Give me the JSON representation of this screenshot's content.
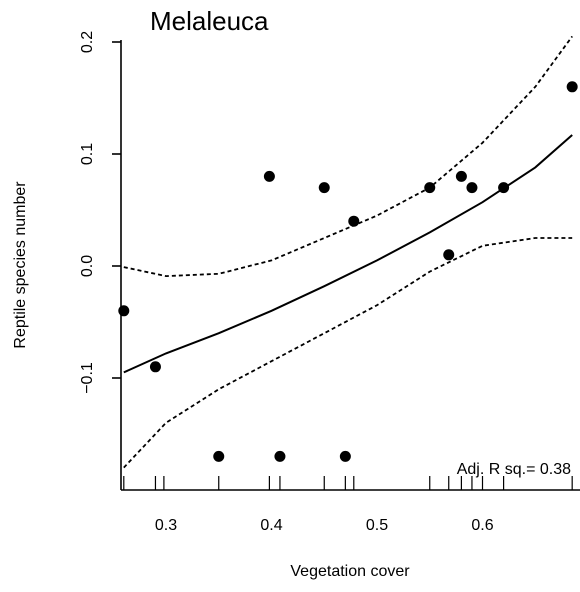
{
  "chart_data": {
    "type": "scatter",
    "title": "Melaleuca",
    "xlabel": "Vegetation cover",
    "ylabel": "Reptile species number",
    "xlim": [
      0.255,
      0.69
    ],
    "ylim": [
      -0.205,
      0.225
    ],
    "x_ticks": [
      0.3,
      0.4,
      0.5,
      0.6
    ],
    "x_tick_labels": [
      "0.3",
      "0.4",
      "0.5",
      "0.6"
    ],
    "y_ticks": [
      -0.1,
      0.0,
      0.1,
      0.2
    ],
    "y_tick_labels": [
      "−0.1",
      "0.0",
      "0.1",
      "0.2"
    ],
    "grid": false,
    "annotation": "Adj. R sq.= 0.38",
    "points": [
      {
        "x": 0.26,
        "y": -0.04
      },
      {
        "x": 0.29,
        "y": -0.09
      },
      {
        "x": 0.35,
        "y": -0.17
      },
      {
        "x": 0.398,
        "y": 0.08
      },
      {
        "x": 0.408,
        "y": -0.17
      },
      {
        "x": 0.45,
        "y": 0.07
      },
      {
        "x": 0.47,
        "y": -0.17
      },
      {
        "x": 0.478,
        "y": 0.04
      },
      {
        "x": 0.55,
        "y": 0.07
      },
      {
        "x": 0.568,
        "y": 0.01
      },
      {
        "x": 0.58,
        "y": 0.08
      },
      {
        "x": 0.59,
        "y": 0.07
      },
      {
        "x": 0.62,
        "y": 0.07
      },
      {
        "x": 0.685,
        "y": 0.16
      }
    ],
    "rug_x": [
      0.26,
      0.29,
      0.298,
      0.35,
      0.398,
      0.408,
      0.45,
      0.47,
      0.478,
      0.55,
      0.568,
      0.58,
      0.59,
      0.6,
      0.62,
      0.685
    ],
    "fit_line": {
      "x": [
        0.26,
        0.3,
        0.35,
        0.4,
        0.45,
        0.5,
        0.55,
        0.6,
        0.65,
        0.685
      ],
      "y": [
        -0.095,
        -0.078,
        -0.06,
        -0.04,
        -0.018,
        0.005,
        0.03,
        0.057,
        0.088,
        0.117
      ]
    },
    "upper_band": {
      "x": [
        0.26,
        0.3,
        0.35,
        0.4,
        0.45,
        0.5,
        0.55,
        0.6,
        0.65,
        0.685
      ],
      "y": [
        -0.001,
        -0.009,
        -0.007,
        0.005,
        0.025,
        0.045,
        0.07,
        0.11,
        0.16,
        0.205
      ]
    },
    "lower_band": {
      "x": [
        0.26,
        0.3,
        0.35,
        0.4,
        0.45,
        0.5,
        0.55,
        0.6,
        0.65,
        0.685
      ],
      "y": [
        -0.18,
        -0.14,
        -0.11,
        -0.085,
        -0.06,
        -0.035,
        -0.005,
        0.018,
        0.025,
        0.025
      ]
    }
  }
}
